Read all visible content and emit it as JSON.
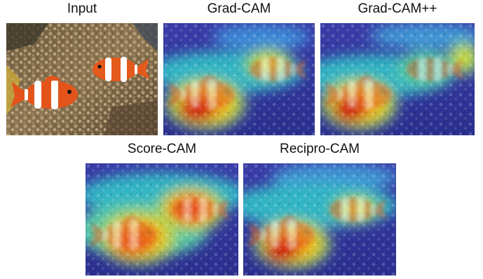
{
  "panels": [
    {
      "id": "input",
      "title": "Input"
    },
    {
      "id": "grad-cam",
      "title": "Grad-CAM"
    },
    {
      "id": "grad-cam-pp",
      "title": "Grad-CAM++"
    },
    {
      "id": "score-cam",
      "title": "Score-CAM"
    },
    {
      "id": "recipro-cam",
      "title": "Recipro-CAM"
    }
  ]
}
